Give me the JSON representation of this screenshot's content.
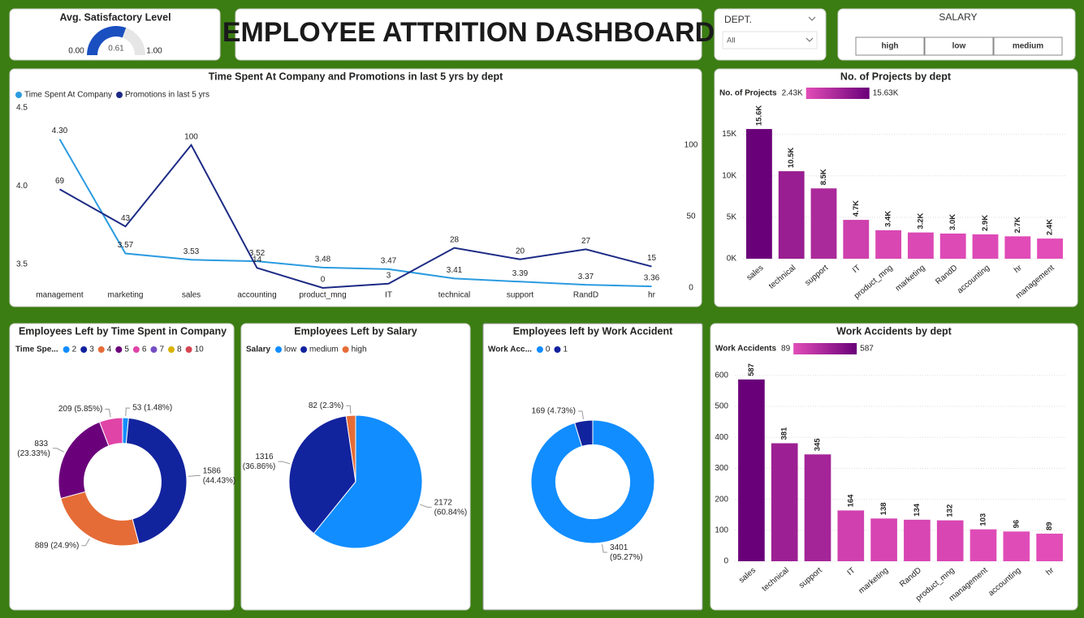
{
  "dashboard_title": "EMPLOYEE ATTRITION DASHBOARD",
  "dept_slicer": {
    "label": "DEPT.",
    "selected": "All"
  },
  "salary_slicer": {
    "label": "SALARY",
    "options": [
      "high",
      "low",
      "medium"
    ]
  },
  "chart_data": [
    {
      "type": "gauge",
      "title": "Avg. Satisfactory Level",
      "value": 0.61,
      "min": {
        "value": 0,
        "label": "0.00"
      },
      "max": {
        "value": 1,
        "label": "1.00"
      },
      "color": "#1a4fc0"
    },
    {
      "type": "line",
      "title": "Time Spent At Company and Promotions in last 5 yrs by dept",
      "categories": [
        "management",
        "marketing",
        "sales",
        "accounting",
        "product_mng",
        "IT",
        "technical",
        "support",
        "RandD",
        "hr"
      ],
      "series": [
        {
          "name": "Time Spent At Company",
          "color": "#2b9be0",
          "values": [
            4.3,
            3.57,
            3.53,
            3.52,
            3.48,
            3.47,
            3.41,
            3.39,
            3.37,
            3.36
          ],
          "value_labels": [
            "4.30",
            "3.57",
            "3.53",
            "3.52",
            "3.48",
            "3.47",
            "3.41",
            "3.39",
            "3.37",
            "3.36"
          ]
        },
        {
          "name": "Promotions in last 5 yrs",
          "color": "#1c2a85",
          "axis": "y2",
          "values": [
            69,
            43,
            100,
            14,
            0,
            3,
            28,
            20,
            27,
            15
          ]
        }
      ],
      "ylim": [
        3.35,
        4.5
      ],
      "yticks": [
        3.5,
        {
          "value": 4,
          "label": "4.0"
        },
        4.5
      ],
      "y2lim": [
        0,
        126
      ],
      "y2ticks": [
        0,
        50,
        100
      ],
      "legend": "top-left"
    },
    {
      "type": "bar",
      "title": "No. of Projects by dept",
      "categories": [
        "sales",
        "technical",
        "support",
        "IT",
        "product_mng",
        "marketing",
        "RandD",
        "accounting",
        "hr",
        "management"
      ],
      "values": [
        15634,
        10548,
        8479,
        4683,
        3434,
        3164,
        3033,
        2934,
        2701,
        2432
      ],
      "value_labels": [
        "15.6K",
        "10.5K",
        "8.5K",
        "4.7K",
        "3.4K",
        "3.2K",
        "3.0K",
        "2.9K",
        "2.7K",
        "2.4K"
      ],
      "color_scale": {
        "title": "No. of Projects",
        "min": {
          "value": 2432,
          "label": "2.43K"
        },
        "max": {
          "value": 15634,
          "label": "15.63K"
        },
        "colors": [
          "#e24db8",
          "#6a0079"
        ]
      },
      "ylim": [
        0,
        17500
      ],
      "yticks": [
        {
          "value": 0,
          "label": "0K"
        },
        {
          "value": 5000,
          "label": "5K"
        },
        {
          "value": 10000,
          "label": "10K"
        },
        {
          "value": 15000,
          "label": "15K"
        }
      ],
      "grid": true
    },
    {
      "type": "donut",
      "title": "Employees Left by Time Spent in Company",
      "legend_title": "Time Spe...",
      "categories": [
        "2",
        "3",
        "4",
        "5",
        "6",
        "7",
        "8",
        "10"
      ],
      "values": [
        53,
        1586,
        889,
        833,
        209,
        0,
        0,
        0
      ],
      "value_labels": [
        "53 (1.48%)",
        "1586 (44.43%)",
        "889 (24.9%)",
        "833 (23.33%)",
        "209 (5.85%)",
        null,
        null,
        null
      ],
      "colors": [
        "#118dff",
        "#12239e",
        "#e66c37",
        "#6b007b",
        "#e044a7",
        "#744ec2",
        "#d9b300",
        "#d64550"
      ]
    },
    {
      "type": "pie",
      "title": "Employees Left by Salary",
      "legend_title": "Salary",
      "categories": [
        "low",
        "medium",
        "high"
      ],
      "values": [
        2172,
        1316,
        82
      ],
      "value_labels": [
        "2172 (60.84%)",
        "1316 (36.86%)",
        "82 (2.3%)"
      ],
      "colors": [
        "#118dff",
        "#12239e",
        "#e66c37"
      ]
    },
    {
      "type": "donut",
      "title": "Employees left by Work Accident",
      "legend_title": "Work Acc...",
      "categories": [
        "0",
        "1"
      ],
      "values": [
        3401,
        169
      ],
      "value_labels": [
        "3401 (95.27%)",
        "169 (4.73%)"
      ],
      "colors": [
        "#118dff",
        "#12239e"
      ]
    },
    {
      "type": "bar",
      "title": "Work Accidents by dept",
      "categories": [
        "sales",
        "technical",
        "support",
        "IT",
        "marketing",
        "RandD",
        "product_mng",
        "management",
        "accounting",
        "hr"
      ],
      "values": [
        587,
        381,
        345,
        164,
        138,
        134,
        132,
        103,
        96,
        89
      ],
      "color_scale": {
        "title": "Work Accidents",
        "min": 89,
        "max": 587,
        "colors": [
          "#e24db8",
          "#6a0079"
        ]
      },
      "ylim": [
        0,
        660
      ],
      "yticks": [
        0,
        100,
        200,
        300,
        400,
        500,
        600
      ],
      "grid": true
    }
  ]
}
